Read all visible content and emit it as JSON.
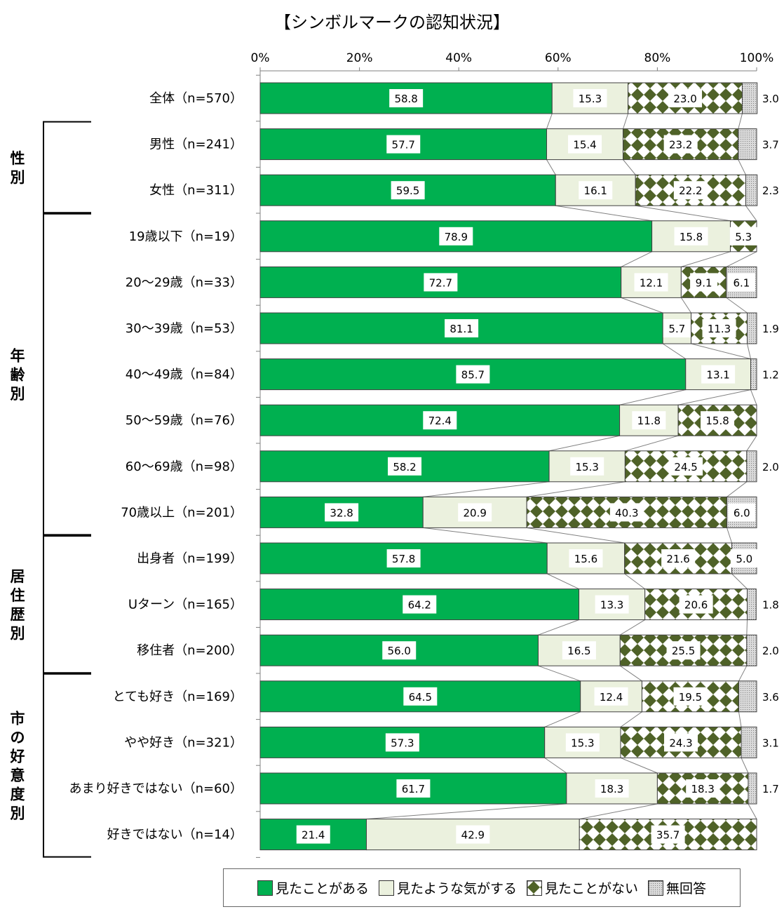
{
  "title": "【シンボルマークの認知状況】",
  "colors": {
    "seen": "#00b050",
    "maybe": "#ebf1de",
    "not_seen_dark": "#4f6228",
    "no_answer": "#d9d9d9",
    "stroke": "#404040"
  },
  "chart_data": {
    "type": "bar",
    "orientation": "horizontal-stacked-100",
    "xlim": [
      0,
      100
    ],
    "x_ticks": [
      "0%",
      "20%",
      "40%",
      "60%",
      "80%",
      "100%"
    ],
    "series": [
      {
        "name": "見たことがある"
      },
      {
        "name": "見たような気がする"
      },
      {
        "name": "見たことがない"
      },
      {
        "name": "無回答"
      }
    ],
    "categories": [
      "全体（n=570）",
      "男性（n=241）",
      "女性（n=311）",
      "19歳以下（n=19）",
      "20～29歳（n=33）",
      "30～39歳（n=53）",
      "40～49歳（n=84）",
      "50～59歳（n=76）",
      "60～69歳（n=98）",
      "70歳以上（n=201）",
      "出身者（n=199）",
      "Uターン（n=165）",
      "移住者（n=200）",
      "とても好き（n=169）",
      "やや好き（n=321）",
      "あまり好きではない（n=60）",
      "好きではない（n=14）"
    ],
    "values": [
      [
        58.8,
        15.3,
        23.0,
        3.0
      ],
      [
        57.7,
        15.4,
        23.2,
        3.7
      ],
      [
        59.5,
        16.1,
        22.2,
        2.3
      ],
      [
        78.9,
        15.8,
        5.3,
        0
      ],
      [
        72.7,
        12.1,
        9.1,
        6.1
      ],
      [
        81.1,
        5.7,
        11.3,
        1.9
      ],
      [
        85.7,
        13.1,
        0,
        1.2
      ],
      [
        72.4,
        11.8,
        15.8,
        0
      ],
      [
        58.2,
        15.3,
        24.5,
        2.0
      ],
      [
        32.8,
        20.9,
        40.3,
        6.0
      ],
      [
        57.8,
        15.6,
        21.6,
        5.0
      ],
      [
        64.2,
        13.3,
        20.6,
        1.8
      ],
      [
        56.0,
        16.5,
        25.5,
        2.0
      ],
      [
        64.5,
        12.4,
        19.5,
        3.6
      ],
      [
        57.3,
        15.3,
        24.3,
        3.1
      ],
      [
        61.7,
        18.3,
        18.3,
        1.7
      ],
      [
        21.4,
        42.9,
        35.7,
        0
      ]
    ],
    "data_labels": [
      [
        "58.8",
        "15.3",
        "23.0",
        "3.0"
      ],
      [
        "57.7",
        "15.4",
        "23.2",
        "3.7"
      ],
      [
        "59.5",
        "16.1",
        "22.2",
        "2.3"
      ],
      [
        "78.9",
        "15.8",
        "5.3",
        ""
      ],
      [
        "72.7",
        "12.1",
        "9.1",
        "6.1"
      ],
      [
        "81.1",
        "5.7",
        "11.3",
        "1.9"
      ],
      [
        "85.7",
        "13.1",
        "",
        "1.2"
      ],
      [
        "72.4",
        "11.8",
        "15.8",
        ""
      ],
      [
        "58.2",
        "15.3",
        "24.5",
        "2.0"
      ],
      [
        "32.8",
        "20.9",
        "40.3",
        "6.0"
      ],
      [
        "57.8",
        "15.6",
        "21.6",
        "5.0"
      ],
      [
        "64.2",
        "13.3",
        "20.6",
        "1.8"
      ],
      [
        "56.0",
        "16.5",
        "25.5",
        "2.0"
      ],
      [
        "64.5",
        "12.4",
        "19.5",
        "3.6"
      ],
      [
        "57.3",
        "15.3",
        "24.3",
        "3.1"
      ],
      [
        "61.7",
        "18.3",
        "18.3",
        "1.7"
      ],
      [
        "21.4",
        "42.9",
        "35.7",
        ""
      ]
    ],
    "groups": [
      {
        "label": "性別",
        "rows": [
          1,
          2
        ]
      },
      {
        "label": "年齢別",
        "rows": [
          3,
          9
        ]
      },
      {
        "label": "居住歴別",
        "rows": [
          10,
          12
        ]
      },
      {
        "label": "市の好意度別",
        "rows": [
          13,
          16
        ]
      }
    ],
    "legend_position": "bottom",
    "grid": false
  }
}
